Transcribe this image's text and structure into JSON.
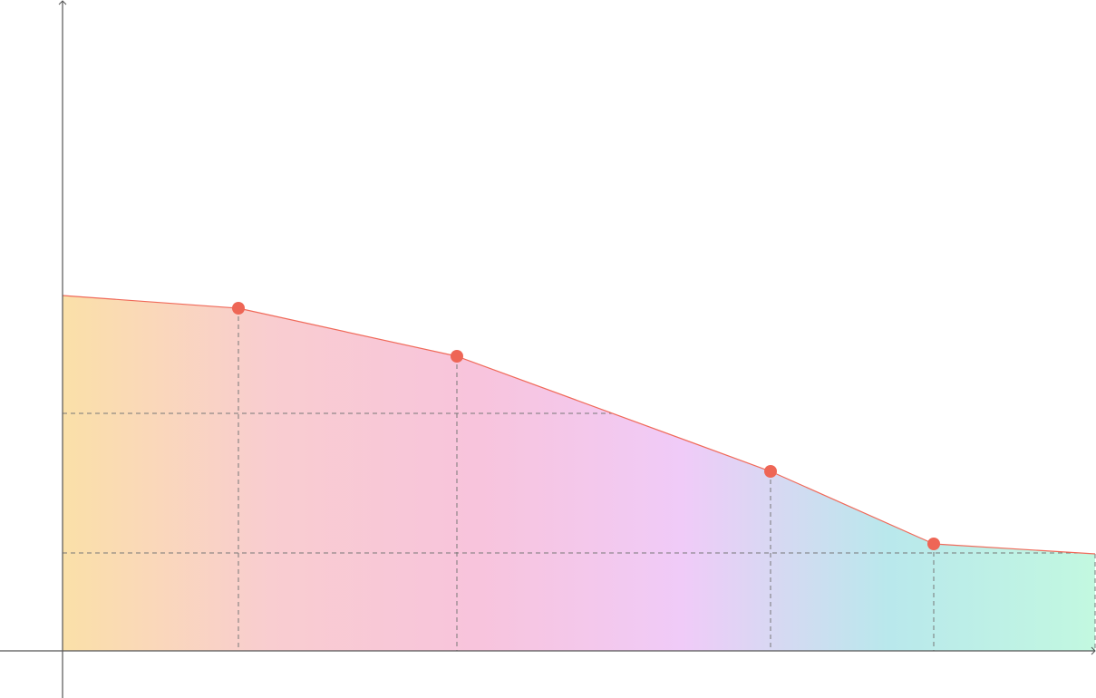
{
  "chart_data": {
    "type": "area",
    "x": [
      0,
      194,
      435,
      781,
      961,
      1139
    ],
    "values": [
      392,
      378,
      325,
      198,
      118,
      107
    ],
    "xlim": [
      -69,
      1140
    ],
    "ylim": [
      -52,
      718
    ],
    "reference_lines": [
      262,
      108
    ],
    "line_color": "#f06a5a",
    "marker_color": "#ee6656",
    "end_markers": false,
    "gradient": [
      "#fae0a8",
      "#f9cdd0",
      "#f8c4dc",
      "#f0cbf8",
      "#b9e8ec",
      "#c2f8e0"
    ]
  }
}
